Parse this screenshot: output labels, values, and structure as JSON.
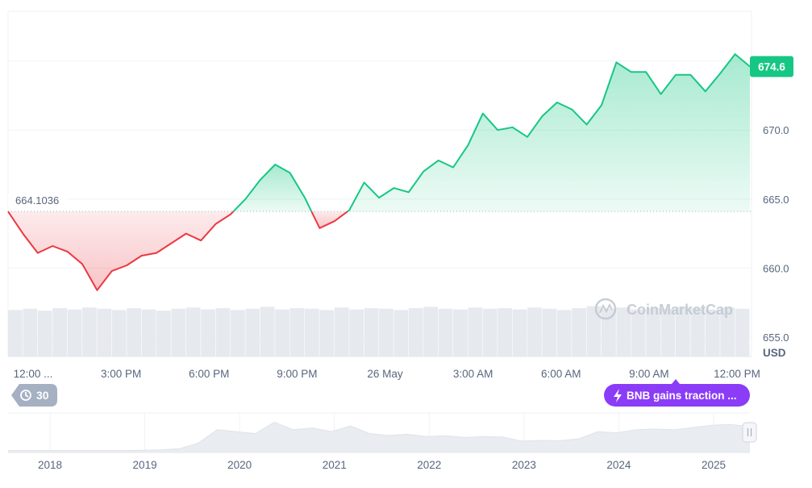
{
  "chart_data": {
    "type": "line",
    "currency": "USD",
    "reference_value": "664.1036",
    "current_value": "674.6",
    "y_ticks": [
      "670.0",
      "665.0",
      "660.0",
      "655.0"
    ],
    "ylim": [
      653.6,
      678.6
    ],
    "x_ticks": [
      "12:00 ...",
      "3:00 PM",
      "6:00 PM",
      "9:00 PM",
      "26 May",
      "3:00 AM",
      "6:00 AM",
      "9:00 AM",
      "12:00 PM"
    ],
    "series": [
      {
        "x": [
          0,
          0.5,
          1,
          1.5,
          2,
          2.5,
          3,
          3.5,
          4,
          4.5,
          5,
          5.5,
          6,
          6.5,
          7,
          7.5,
          8,
          8.5,
          9,
          9.5,
          10,
          10.5,
          11,
          11.5,
          12,
          12.5,
          13,
          13.5,
          14,
          14.5,
          15,
          15.5,
          16,
          16.5,
          17,
          17.5,
          18,
          18.5,
          19,
          19.5,
          20,
          20.5,
          21,
          21.5,
          22,
          22.5,
          23,
          23.5,
          24,
          24.5,
          25
        ],
        "values": [
          664.1,
          662.5,
          661.1,
          661.6,
          661.2,
          660.3,
          658.4,
          659.8,
          660.2,
          660.9,
          661.1,
          661.8,
          662.5,
          662.0,
          663.2,
          663.9,
          665.0,
          666.4,
          667.5,
          666.9,
          665.1,
          662.9,
          663.4,
          664.2,
          666.2,
          665.1,
          665.8,
          665.5,
          667.0,
          667.8,
          667.3,
          668.9,
          671.2,
          670.0,
          670.2,
          669.5,
          671.0,
          672.0,
          671.5,
          670.4,
          671.8,
          674.9,
          674.2,
          674.2,
          672.6,
          674.0,
          674.0,
          672.8,
          674.1,
          675.5,
          674.6
        ]
      }
    ],
    "volume": [
      0.72,
      0.74,
      0.71,
      0.75,
      0.73,
      0.76,
      0.74,
      0.72,
      0.75,
      0.73,
      0.71,
      0.74,
      0.76,
      0.73,
      0.75,
      0.72,
      0.74,
      0.77,
      0.73,
      0.75,
      0.74,
      0.72,
      0.76,
      0.73,
      0.75,
      0.74,
      0.72,
      0.75,
      0.77,
      0.74,
      0.73,
      0.76,
      0.74,
      0.75,
      0.73,
      0.76,
      0.74,
      0.72,
      0.75,
      0.78,
      0.74,
      0.76,
      0.73,
      0.75,
      0.74,
      0.77,
      0.75,
      0.73,
      0.76,
      0.74
    ],
    "navigator": {
      "x_ticks": [
        "2018",
        "2019",
        "2020",
        "2021",
        "2022",
        "2023",
        "2024",
        "2025"
      ],
      "values": [
        0.05,
        0.05,
        0.05,
        0.05,
        0.05,
        0.05,
        0.05,
        0.06,
        0.07,
        0.1,
        0.25,
        0.6,
        0.55,
        0.5,
        0.8,
        0.6,
        0.65,
        0.55,
        0.7,
        0.5,
        0.45,
        0.48,
        0.42,
        0.44,
        0.4,
        0.42,
        0.41,
        0.3,
        0.32,
        0.31,
        0.36,
        0.55,
        0.52,
        0.6,
        0.62,
        0.6,
        0.66,
        0.72,
        0.74,
        0.68
      ],
      "zoom_label": "30"
    },
    "grid": true
  },
  "colors": {
    "up": "#16c784",
    "down": "#ea3943",
    "badge": "#16c784",
    "news_pill": "#8b3cf7"
  },
  "watermark_text": "CoinMarketCap",
  "currency_label": "USD",
  "news_label": "BNB gains traction ...",
  "icons": {
    "zoom": "history-icon",
    "news": "lightning-icon",
    "handle": "drag-handle-icon"
  }
}
